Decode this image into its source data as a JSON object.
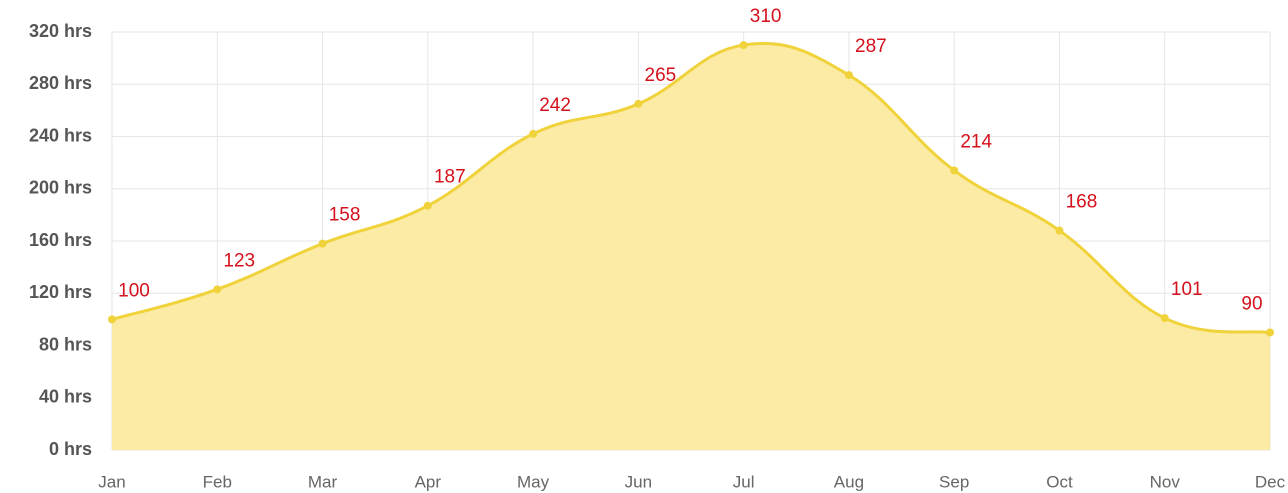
{
  "chart_data": {
    "type": "area",
    "categories": [
      "Jan",
      "Feb",
      "Mar",
      "Apr",
      "May",
      "Jun",
      "Jul",
      "Aug",
      "Sep",
      "Oct",
      "Nov",
      "Dec"
    ],
    "values": [
      100,
      123,
      158,
      187,
      242,
      265,
      310,
      287,
      214,
      168,
      101,
      90
    ],
    "color": "#f0d23a",
    "fill_color": "#fbe99b",
    "label_color": "#d4111c",
    "ylim": [
      0,
      320
    ],
    "yticks": [
      {
        "value": 0,
        "label": "0 hrs"
      },
      {
        "value": 40,
        "label": "40 hrs"
      },
      {
        "value": 80,
        "label": "80 hrs"
      },
      {
        "value": 120,
        "label": "120 hrs"
      },
      {
        "value": 160,
        "label": "160 hrs"
      },
      {
        "value": 200,
        "label": "200 hrs"
      },
      {
        "value": 240,
        "label": "240 hrs"
      },
      {
        "value": 280,
        "label": "280 hrs"
      },
      {
        "value": 320,
        "label": "320 hrs"
      }
    ],
    "grid": true
  }
}
